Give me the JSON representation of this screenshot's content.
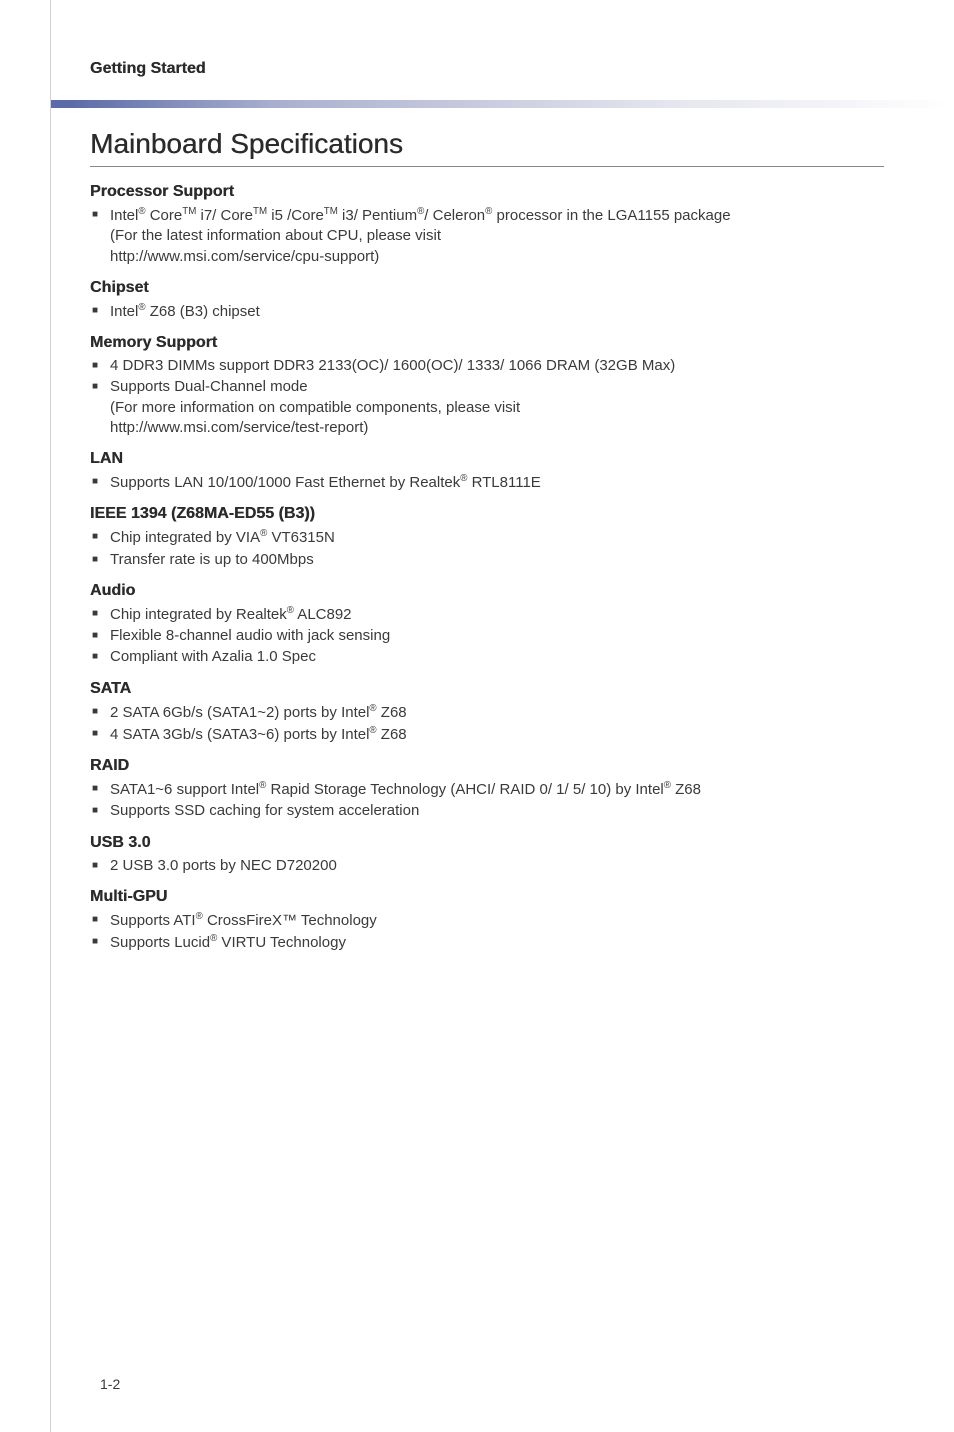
{
  "section_header": "Getting Started",
  "page_title": "Mainboard Specifications",
  "page_number": "1-2",
  "sections": {
    "processor": {
      "heading": "Processor Support",
      "item_html": "Intel<sup>®</sup> Core<sup>TM</sup> i7/ Core<sup>TM</sup> i5 /Core<sup>TM</sup> i3/ Pentium<sup>®</sup>/ Celeron<sup>®</sup> processor in the LGA1155 package",
      "note1": "(For the latest information about CPU, please visit",
      "note2": "http://www.msi.com/service/cpu-support)"
    },
    "chipset": {
      "heading": "Chipset",
      "item_html": "Intel<sup>®</sup> Z68 (B3) chipset"
    },
    "memory": {
      "heading": "Memory Support",
      "item1": "4 DDR3 DIMMs support DDR3 2133(OC)/ 1600(OC)/ 1333/ 1066 DRAM (32GB Max)",
      "item2": "Supports Dual-Channel mode",
      "note1": "(For more information on compatible components, please visit",
      "note2": "http://www.msi.com/service/test-report)"
    },
    "lan": {
      "heading": "LAN",
      "item_html": "Supports LAN 10/100/1000 Fast Ethernet by Realtek<sup>®</sup> RTL8111E"
    },
    "ieee": {
      "heading": "IEEE 1394 (Z68MA-ED55 (B3))",
      "item1_html": "Chip integrated by VIA<sup>®</sup> VT6315N",
      "item2": "Transfer rate is up to 400Mbps"
    },
    "audio": {
      "heading": "Audio",
      "item1_html": "Chip integrated by Realtek<sup>®</sup> ALC892",
      "item2": "Flexible 8-channel audio with jack sensing",
      "item3": "Compliant with Azalia 1.0 Spec"
    },
    "sata": {
      "heading": "SATA",
      "item1_html": "2 SATA 6Gb/s (SATA1~2) ports by Intel<sup>®</sup> Z68",
      "item2_html": "4 SATA 3Gb/s (SATA3~6) ports by Intel<sup>®</sup> Z68"
    },
    "raid": {
      "heading": "RAID",
      "item1_html": "SATA1~6 support Intel<sup>®</sup> Rapid Storage Technology (AHCI/ RAID 0/ 1/ 5/ 10) by Intel<sup>®</sup> Z68",
      "item2": "Supports SSD caching for system acceleration"
    },
    "usb": {
      "heading": "USB 3.0",
      "item1": "2 USB 3.0 ports by NEC D720200"
    },
    "gpu": {
      "heading": "Multi-GPU",
      "item1_html": "Supports ATI<sup>®</sup> CrossFireX™ Technology",
      "item2_html": "Supports Lucid<sup>®</sup> VIRTU Technology"
    }
  }
}
